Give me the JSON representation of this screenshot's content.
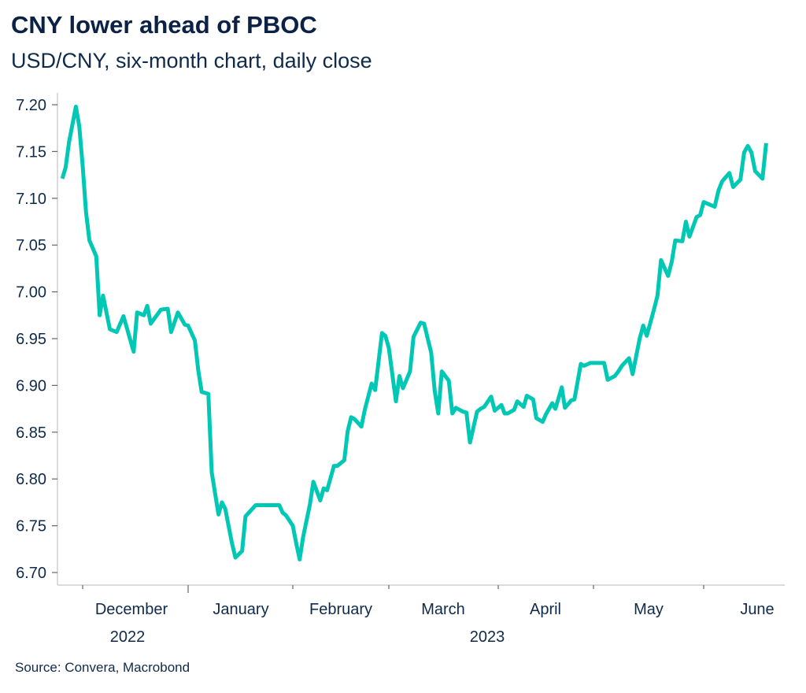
{
  "header": {
    "title": "CNY lower ahead of PBOC",
    "subtitle": "USD/CNY, six-month chart, daily close"
  },
  "footer": {
    "source": "Source: Convera, Macrobond"
  },
  "colors": {
    "line": "#00c8b4",
    "text": "#0f2a4a"
  },
  "chart_data": {
    "type": "line",
    "title": "CNY lower ahead of PBOC",
    "subtitle": "USD/CNY, six-month chart, daily close",
    "xlabel": "",
    "ylabel": "",
    "ylim": [
      6.7,
      7.2
    ],
    "xlim": [
      "2022-11-18",
      "2023-06-22"
    ],
    "y_ticks": [
      "7.20",
      "7.15",
      "7.10",
      "7.05",
      "7.00",
      "6.95",
      "6.90",
      "6.85",
      "6.80",
      "6.75",
      "6.70"
    ],
    "x_ticks": [
      {
        "date": "2022-12-01",
        "label": "December"
      },
      {
        "date": "2023-01-01",
        "label": "January",
        "year_boundary": true
      },
      {
        "date": "2023-02-01",
        "label": "February"
      },
      {
        "date": "2023-03-01",
        "label": "March"
      },
      {
        "date": "2023-04-01",
        "label": "April"
      },
      {
        "date": "2023-05-01",
        "label": "May"
      },
      {
        "date": "2023-06-01",
        "label": "June"
      }
    ],
    "year_labels": [
      {
        "label": "2022",
        "anchor": "December"
      },
      {
        "label": "2023",
        "anchor": "March-April"
      }
    ],
    "grid": false,
    "legend": "none",
    "series": [
      {
        "name": "USD/CNY",
        "x": [
          "2022-11-25",
          "2022-11-26",
          "2022-11-27",
          "2022-11-29",
          "2022-11-30",
          "2022-12-01",
          "2022-12-02",
          "2022-12-03",
          "2022-12-05",
          "2022-12-06",
          "2022-12-07",
          "2022-12-09",
          "2022-12-11",
          "2022-12-13",
          "2022-12-16",
          "2022-12-17",
          "2022-12-19",
          "2022-12-20",
          "2022-12-21",
          "2022-12-24",
          "2022-12-26",
          "2022-12-27",
          "2022-12-29",
          "2022-12-31",
          "2023-01-01",
          "2023-01-03",
          "2023-01-04",
          "2023-01-05",
          "2023-01-07",
          "2023-01-08",
          "2023-01-10",
          "2023-01-11",
          "2023-01-12",
          "2023-01-14",
          "2023-01-15",
          "2023-01-17",
          "2023-01-18",
          "2023-01-20",
          "2023-01-21",
          "2023-01-28",
          "2023-01-29",
          "2023-01-30",
          "2023-02-01",
          "2023-02-02",
          "2023-02-03",
          "2023-02-04",
          "2023-02-06",
          "2023-02-07",
          "2023-02-09",
          "2023-02-10",
          "2023-02-11",
          "2023-02-13",
          "2023-02-14",
          "2023-02-16",
          "2023-02-17",
          "2023-02-18",
          "2023-02-19",
          "2023-02-21",
          "2023-02-22",
          "2023-02-24",
          "2023-02-25",
          "2023-02-27",
          "2023-02-28",
          "2023-03-01",
          "2023-03-03",
          "2023-03-04",
          "2023-03-05",
          "2023-03-07",
          "2023-03-08",
          "2023-03-10",
          "2023-03-11",
          "2023-03-13",
          "2023-03-14",
          "2023-03-15",
          "2023-03-16",
          "2023-03-18",
          "2023-03-19",
          "2023-03-20",
          "2023-03-22",
          "2023-03-23",
          "2023-03-24",
          "2023-03-26",
          "2023-03-27",
          "2023-03-28",
          "2023-03-30",
          "2023-03-31",
          "2023-04-02",
          "2023-04-03",
          "2023-04-04",
          "2023-04-06",
          "2023-04-07",
          "2023-04-09",
          "2023-04-10",
          "2023-04-12",
          "2023-04-13",
          "2023-04-15",
          "2023-04-16",
          "2023-04-18",
          "2023-04-19",
          "2023-04-21",
          "2023-04-22",
          "2023-04-24",
          "2023-04-25",
          "2023-04-27",
          "2023-04-28",
          "2023-04-30",
          "2023-05-04",
          "2023-05-05",
          "2023-05-07",
          "2023-05-08",
          "2023-05-09",
          "2023-05-11",
          "2023-05-12",
          "2023-05-14",
          "2023-05-15",
          "2023-05-16",
          "2023-05-18",
          "2023-05-19",
          "2023-05-20",
          "2023-05-22",
          "2023-05-23",
          "2023-05-24",
          "2023-05-26",
          "2023-05-27",
          "2023-05-28",
          "2023-05-30",
          "2023-05-31",
          "2023-06-01",
          "2023-06-04",
          "2023-06-05",
          "2023-06-06",
          "2023-06-08",
          "2023-06-09",
          "2023-06-11",
          "2023-06-12",
          "2023-06-13",
          "2023-06-14",
          "2023-06-15",
          "2023-06-17",
          "2023-06-18"
        ],
        "values": [
          7.121,
          7.133,
          7.16,
          7.198,
          7.177,
          7.135,
          7.085,
          7.055,
          7.038,
          6.975,
          6.996,
          6.96,
          6.957,
          6.974,
          6.936,
          6.978,
          6.975,
          6.985,
          6.966,
          6.981,
          6.982,
          6.957,
          6.978,
          6.965,
          6.964,
          6.948,
          6.916,
          6.893,
          6.891,
          6.807,
          6.762,
          6.775,
          6.768,
          6.731,
          6.716,
          6.723,
          6.76,
          6.768,
          6.772,
          6.772,
          6.764,
          6.761,
          6.75,
          6.731,
          6.714,
          6.738,
          6.773,
          6.797,
          6.777,
          6.79,
          6.788,
          6.814,
          6.814,
          6.82,
          6.851,
          6.866,
          6.864,
          6.856,
          6.874,
          6.902,
          6.895,
          6.956,
          6.953,
          6.94,
          6.883,
          6.91,
          6.897,
          6.915,
          6.952,
          6.967,
          6.966,
          6.935,
          6.894,
          6.87,
          6.915,
          6.905,
          6.87,
          6.876,
          6.872,
          6.871,
          6.839,
          6.872,
          6.875,
          6.877,
          6.888,
          6.873,
          6.879,
          6.87,
          6.87,
          6.874,
          6.883,
          6.877,
          6.889,
          6.885,
          6.865,
          6.861,
          6.869,
          6.881,
          6.875,
          6.898,
          6.876,
          6.884,
          6.885,
          6.923,
          6.921,
          6.924,
          6.924,
          6.906,
          6.91,
          6.915,
          6.921,
          6.929,
          6.912,
          6.95,
          6.964,
          6.953,
          6.981,
          6.996,
          7.034,
          7.017,
          7.032,
          7.055,
          7.054,
          7.075,
          7.059,
          7.08,
          7.082,
          7.096,
          7.091,
          7.108,
          7.118,
          7.127,
          7.112,
          7.12,
          7.149,
          7.156,
          7.149,
          7.129,
          7.121,
          7.159
        ]
      }
    ]
  }
}
